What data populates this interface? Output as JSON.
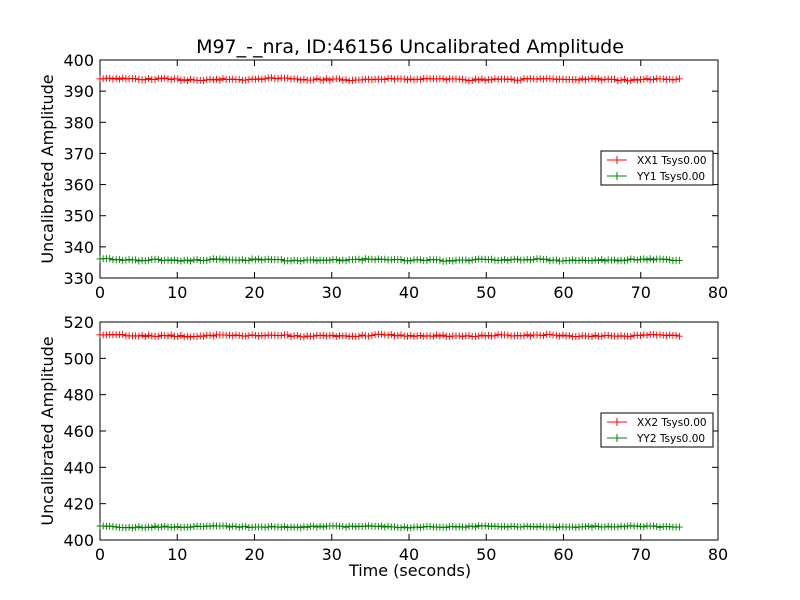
{
  "chart_data": {
    "title": "M97_-_nra, ID:46156 Uncalibrated Amplitude",
    "xlabel": "Time (seconds)",
    "plots": [
      {
        "type": "line",
        "marker": "plus",
        "ylabel": "Uncalibrated Amplitude",
        "xlim": [
          0,
          80
        ],
        "ylim": [
          330,
          400
        ],
        "xticks": [
          0,
          10,
          20,
          30,
          40,
          50,
          60,
          70,
          80
        ],
        "yticks": [
          330,
          340,
          350,
          360,
          370,
          380,
          390,
          400
        ],
        "legend_position": "center-right",
        "x_range": [
          0,
          75
        ],
        "series": [
          {
            "name": "XX1 Tsys0.00",
            "color": "#ff0000",
            "mean": 393.8,
            "amp": 0.45
          },
          {
            "name": "YY1 Tsys0.00",
            "color": "#008000",
            "mean": 335.8,
            "amp": 0.4
          }
        ]
      },
      {
        "type": "line",
        "marker": "plus",
        "ylabel": "Uncalibrated Amplitude",
        "xlim": [
          0,
          80
        ],
        "ylim": [
          400,
          520
        ],
        "xticks": [
          0,
          10,
          20,
          30,
          40,
          50,
          60,
          70,
          80
        ],
        "yticks": [
          400,
          420,
          440,
          460,
          480,
          500,
          520
        ],
        "legend_position": "center-right",
        "x_range": [
          0,
          75
        ],
        "series": [
          {
            "name": "XX2 Tsys0.00",
            "color": "#ff0000",
            "mean": 512.5,
            "amp": 0.7
          },
          {
            "name": "YY2 Tsys0.00",
            "color": "#008000",
            "mean": 407.3,
            "amp": 0.6
          }
        ]
      }
    ]
  }
}
